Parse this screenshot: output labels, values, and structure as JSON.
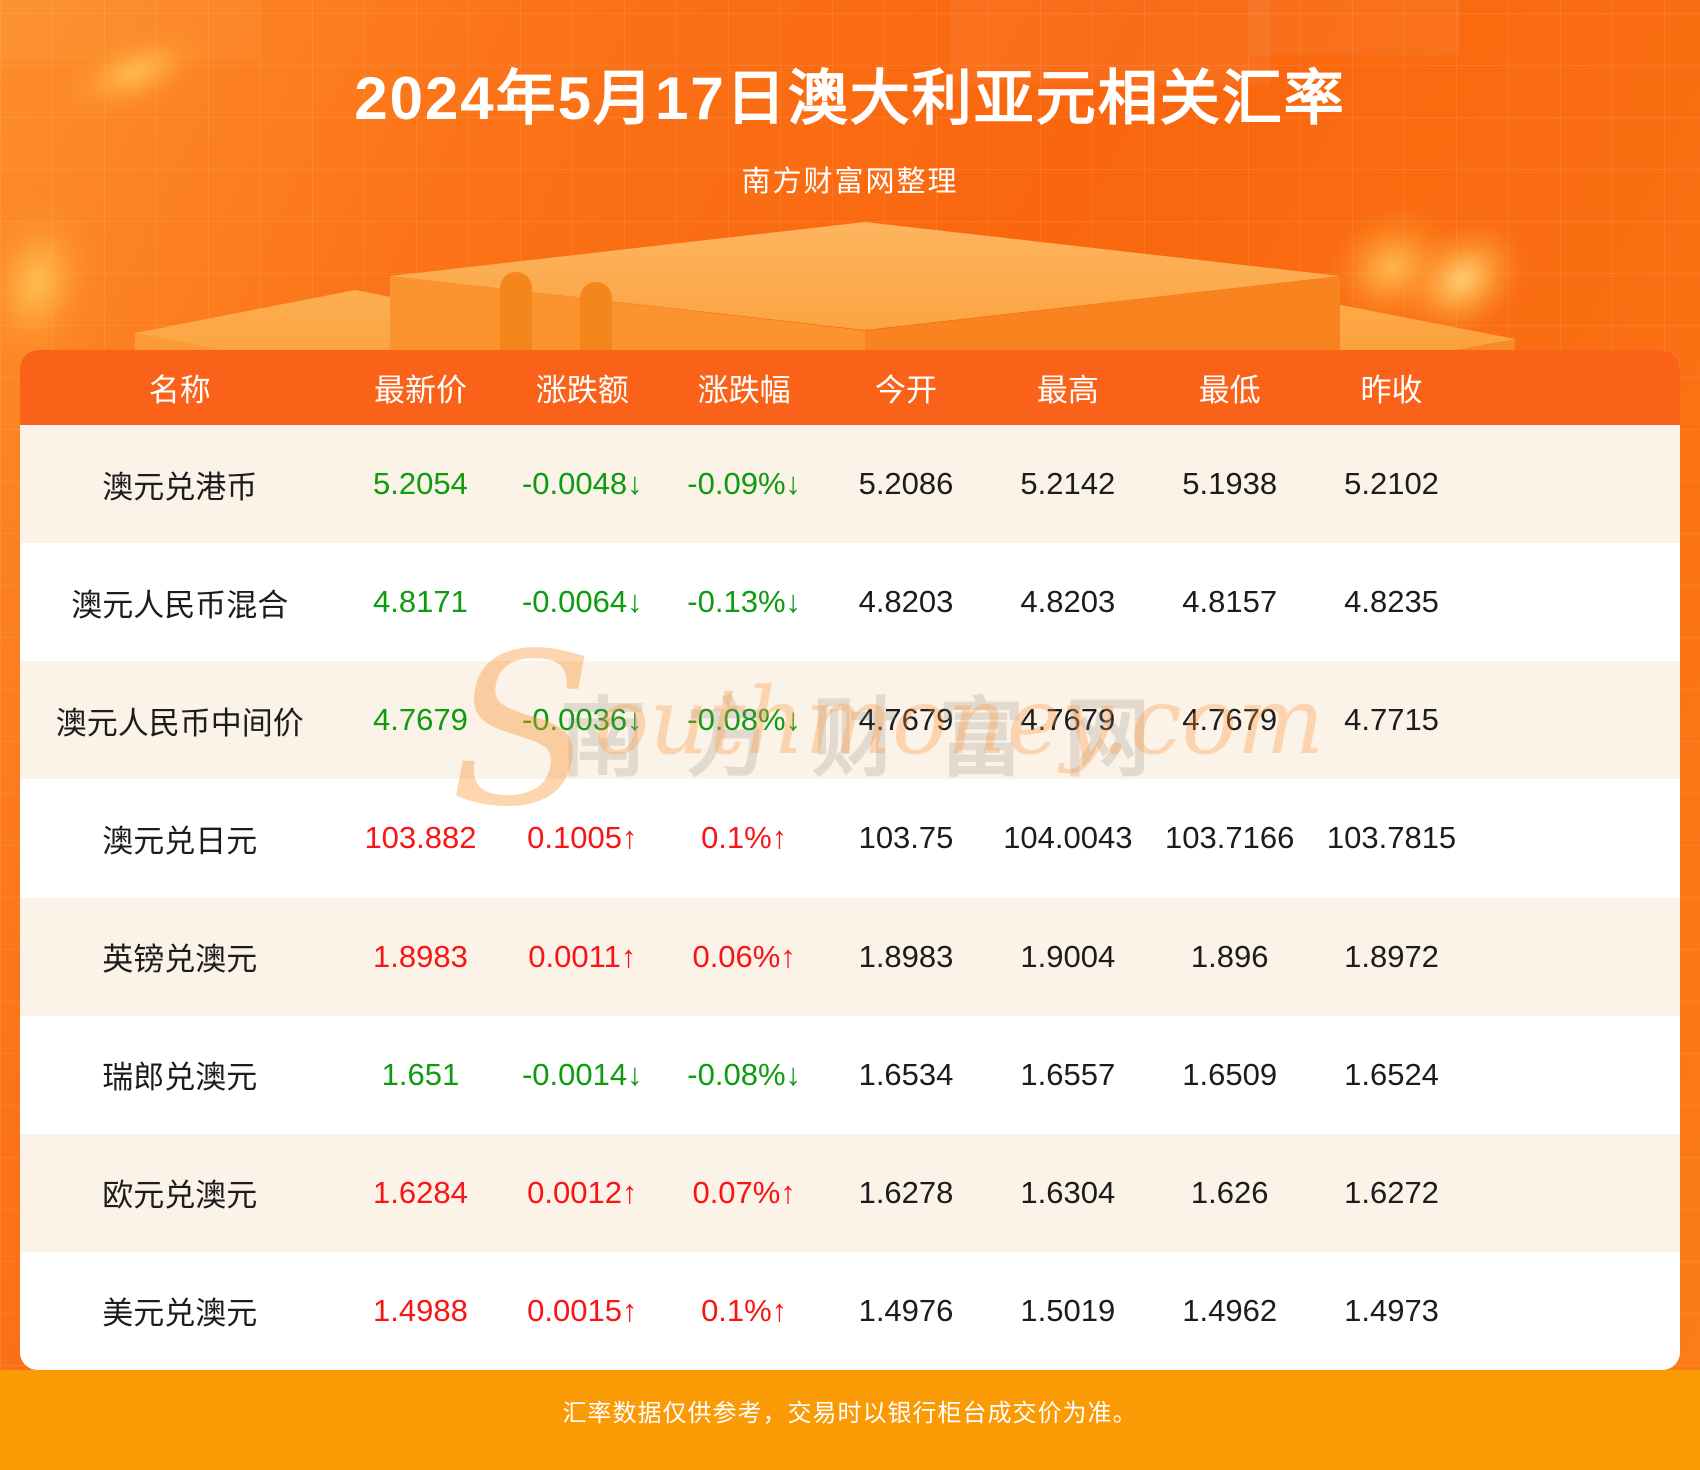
{
  "page": {
    "title": "2024年5月17日澳大利亚元相关汇率",
    "subtitle": "南方财富网整理",
    "footer_note": "汇率数据仅供参考，交易时以银行柜台成交价为准。",
    "watermark_cn": "南方财富网",
    "watermark_en_first": "S",
    "watermark_en_rest": "outhmoney.com"
  },
  "colors": {
    "up_red": "#f91515",
    "down_green": "#0f9b10",
    "header_bg": "#fa6119",
    "footer_bg": "#fa9a05",
    "row_alt_bg": "#fbf2e8",
    "background_orange": "#f9660e"
  },
  "chart_data": {
    "type": "table",
    "title": "2024年5月17日澳大利亚元相关汇率",
    "source_note": "南方财富网整理",
    "columns": [
      "名称",
      "最新价",
      "涨跌额",
      "涨跌幅",
      "今开",
      "最高",
      "最低",
      "昨收"
    ],
    "rows": [
      {
        "name": "澳元兑港币",
        "latest": "5.2054",
        "change": "-0.0048↓",
        "pct": "-0.09%↓",
        "open": "5.2086",
        "high": "5.2142",
        "low": "5.1938",
        "prev": "5.2102",
        "trend": "down"
      },
      {
        "name": "澳元人民币混合",
        "latest": "4.8171",
        "change": "-0.0064↓",
        "pct": "-0.13%↓",
        "open": "4.8203",
        "high": "4.8203",
        "low": "4.8157",
        "prev": "4.8235",
        "trend": "down"
      },
      {
        "name": "澳元人民币中间价",
        "latest": "4.7679",
        "change": "-0.0036↓",
        "pct": "-0.08%↓",
        "open": "4.7679",
        "high": "4.7679",
        "low": "4.7679",
        "prev": "4.7715",
        "trend": "down"
      },
      {
        "name": "澳元兑日元",
        "latest": "103.882",
        "change": "0.1005↑",
        "pct": "0.1%↑",
        "open": "103.75",
        "high": "104.0043",
        "low": "103.7166",
        "prev": "103.7815",
        "trend": "up"
      },
      {
        "name": "英镑兑澳元",
        "latest": "1.8983",
        "change": "0.0011↑",
        "pct": "0.06%↑",
        "open": "1.8983",
        "high": "1.9004",
        "low": "1.896",
        "prev": "1.8972",
        "trend": "up"
      },
      {
        "name": "瑞郎兑澳元",
        "latest": "1.651",
        "change": "-0.0014↓",
        "pct": "-0.08%↓",
        "open": "1.6534",
        "high": "1.6557",
        "low": "1.6509",
        "prev": "1.6524",
        "trend": "down"
      },
      {
        "name": "欧元兑澳元",
        "latest": "1.6284",
        "change": "0.0012↑",
        "pct": "0.07%↑",
        "open": "1.6278",
        "high": "1.6304",
        "low": "1.626",
        "prev": "1.6272",
        "trend": "up"
      },
      {
        "name": "美元兑澳元",
        "latest": "1.4988",
        "change": "0.0015↑",
        "pct": "0.1%↑",
        "open": "1.4976",
        "high": "1.5019",
        "low": "1.4962",
        "prev": "1.4973",
        "trend": "up"
      }
    ]
  }
}
